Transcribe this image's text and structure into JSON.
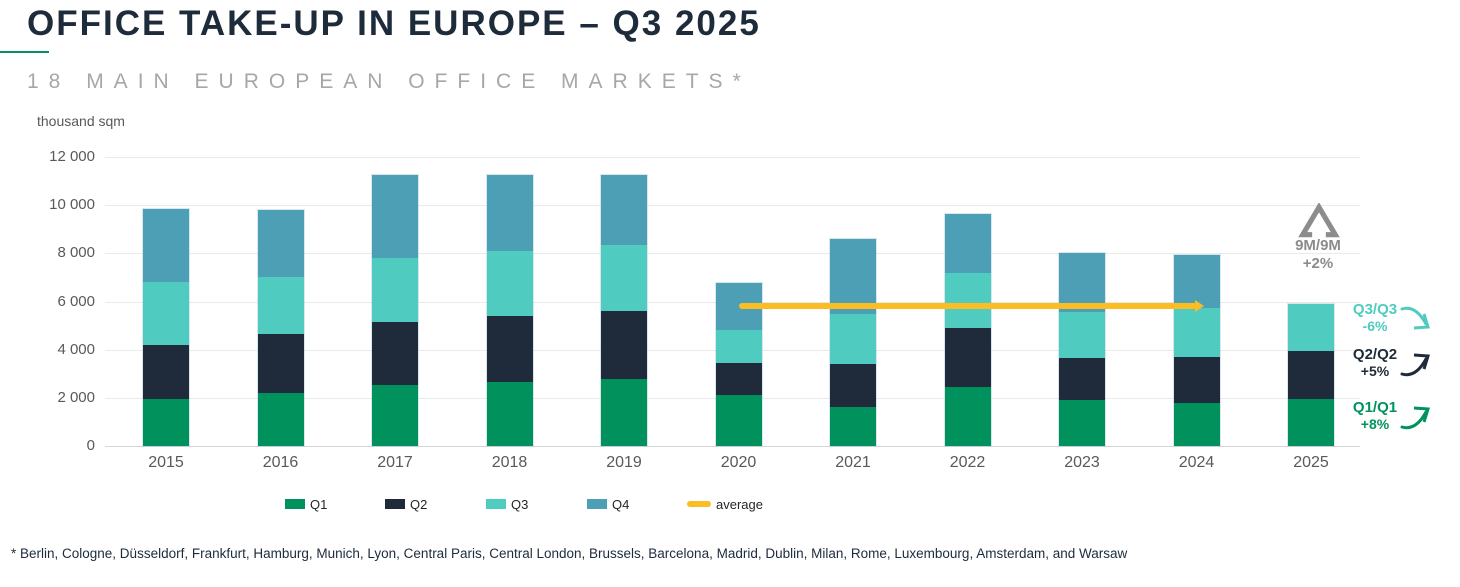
{
  "header": {
    "title": "OFFICE TAKE-UP IN EUROPE – Q3 2025",
    "subtitle": "18 MAIN EUROPEAN OFFICE MARKETS*"
  },
  "chart_data": {
    "type": "bar",
    "stacked": true,
    "ylabel": "thousand sqm",
    "ylim": [
      0,
      12000
    ],
    "ytick_interval": 2000,
    "ytick_labels": [
      "0",
      "2 000",
      "4 000",
      "6 000",
      "8 000",
      "10 000",
      "12 000"
    ],
    "grid": true,
    "legend_position": "bottom",
    "categories": [
      "2015",
      "2016",
      "2017",
      "2018",
      "2019",
      "2020",
      "2021",
      "2022",
      "2023",
      "2024",
      "2025"
    ],
    "series": [
      {
        "name": "Q1",
        "color": "#00915C",
        "values": [
          1950,
          2200,
          2550,
          2650,
          2800,
          2100,
          1600,
          2450,
          1900,
          1800,
          1950
        ]
      },
      {
        "name": "Q2",
        "color": "#1F2B3A",
        "values": [
          2250,
          2450,
          2600,
          2750,
          2800,
          1350,
          1800,
          2450,
          1750,
          1900,
          2000
        ]
      },
      {
        "name": "Q3",
        "color": "#4FCBC0",
        "values": [
          2600,
          2350,
          2650,
          2700,
          2750,
          1350,
          2100,
          2300,
          1900,
          2050,
          1950
        ]
      },
      {
        "name": "Q4",
        "color": "#4C9FB4",
        "values": [
          3050,
          2800,
          3450,
          3150,
          2900,
          1950,
          3100,
          2450,
          2450,
          2200,
          0
        ]
      }
    ],
    "totals": [
      9850,
      9800,
      11250,
      11250,
      11250,
      6750,
      8600,
      9650,
      8000,
      7950,
      5900
    ],
    "average_line": {
      "label": "average",
      "value": 5800,
      "from_category": "2020",
      "to_category": "2024",
      "color": "#FBBD23"
    }
  },
  "legend": {
    "items": [
      {
        "label": "Q1",
        "color": "#00915C",
        "shape": "square"
      },
      {
        "label": "Q2",
        "color": "#1F2B3A",
        "shape": "square"
      },
      {
        "label": "Q3",
        "color": "#4FCBC0",
        "shape": "square"
      },
      {
        "label": "Q4",
        "color": "#4C9FB4",
        "shape": "square"
      },
      {
        "label": "average",
        "color": "#FBBD23",
        "shape": "pill"
      }
    ]
  },
  "annotations": {
    "nine_month": {
      "label": "9M/9M",
      "value": "+2%",
      "color": "#8C8C8C",
      "icon": "delta-triangle-icon"
    },
    "q3_yoy": {
      "label": "Q3/Q3",
      "value": "-6%",
      "color": "#4FCBC0",
      "direction": "down"
    },
    "q2_yoy": {
      "label": "Q2/Q2",
      "value": "+5%",
      "color": "#1F2B3A",
      "direction": "up"
    },
    "q1_yoy": {
      "label": "Q1/Q1",
      "value": "+8%",
      "color": "#00935C",
      "direction": "up"
    }
  },
  "footnote": "* Berlin, Cologne, Düsseldorf, Frankfurt, Hamburg, Munich, Lyon, Central Paris, Central London, Brussels, Barcelona, Madrid, Dublin, Milan, Rome, Luxembourg, Amsterdam, and Warsaw",
  "colors": {
    "title": "#1D2B3A",
    "subtitle": "#A7A7A7",
    "axis_text": "#595959",
    "accent_underline": "#00915C"
  }
}
